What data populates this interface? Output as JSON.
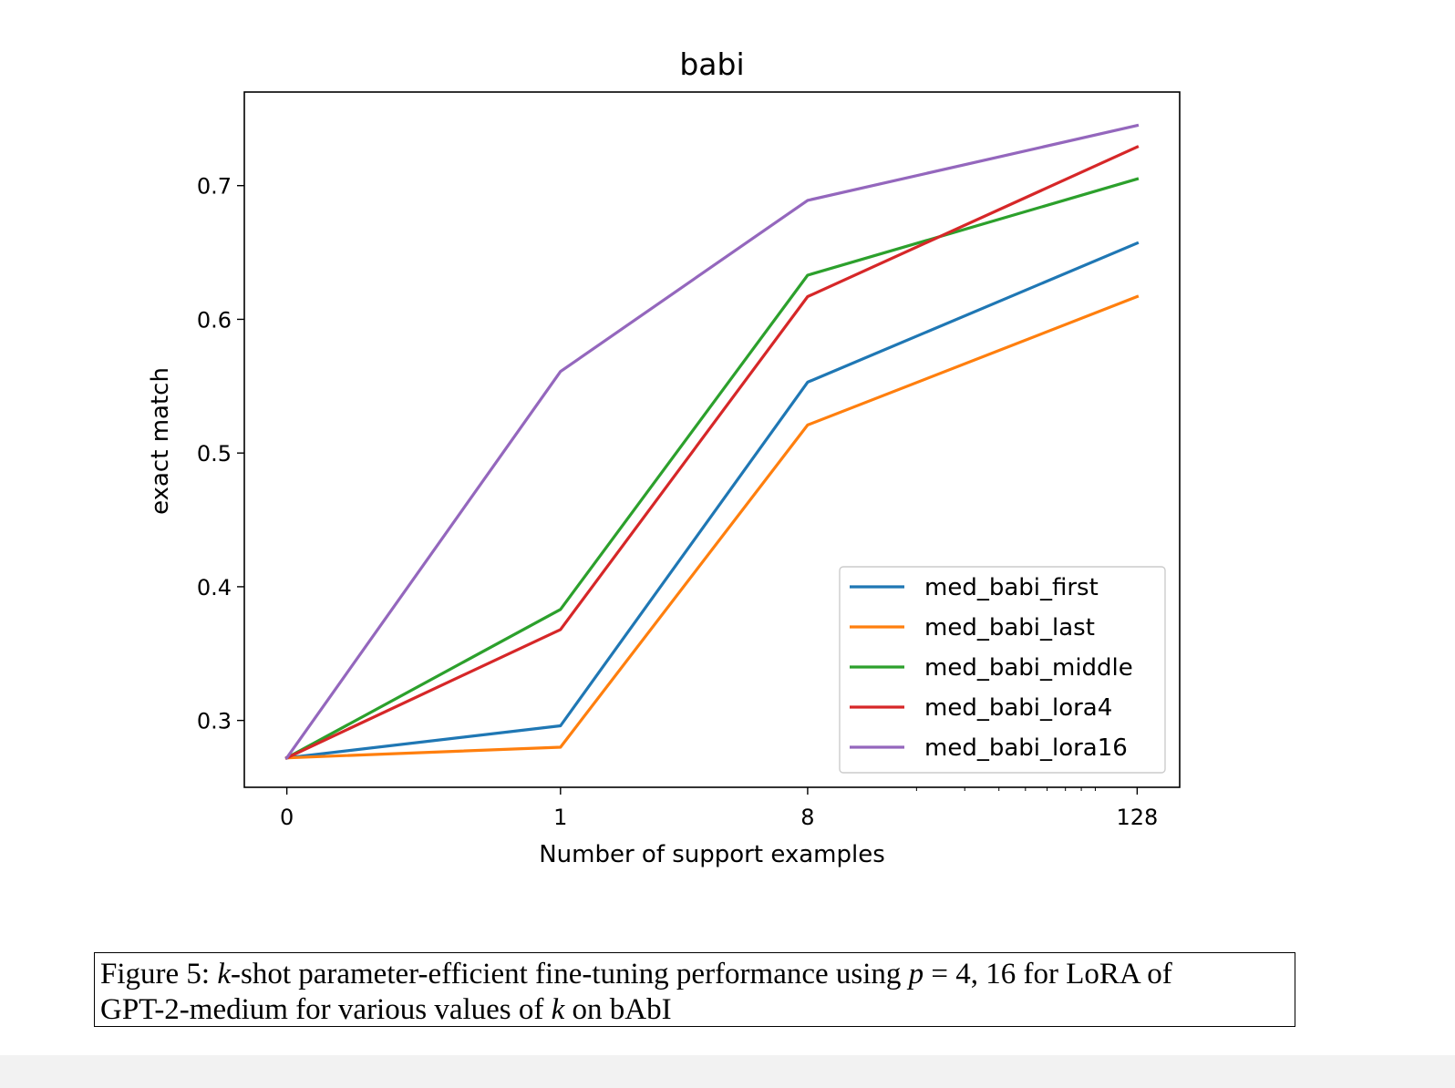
{
  "chart_data": {
    "type": "line",
    "title": "babi",
    "xlabel": "Number of support examples",
    "ylabel": "exact match",
    "x_categories": [
      "0",
      "1",
      "8",
      "128"
    ],
    "x_scale": "symlog",
    "ylim": [
      0.25,
      0.77
    ],
    "yticks": [
      "0.3",
      "0.4",
      "0.5",
      "0.6",
      "0.7"
    ],
    "grid": false,
    "legend_position": "lower right",
    "series": [
      {
        "name": "med_babi_first",
        "color": "#1f77b4",
        "values": [
          0.272,
          0.296,
          0.553,
          0.657
        ]
      },
      {
        "name": "med_babi_last",
        "color": "#ff7f0e",
        "values": [
          0.272,
          0.28,
          0.521,
          0.617
        ]
      },
      {
        "name": "med_babi_middle",
        "color": "#2ca02c",
        "values": [
          0.272,
          0.383,
          0.633,
          0.705
        ]
      },
      {
        "name": "med_babi_lora4",
        "color": "#d62728",
        "values": [
          0.272,
          0.368,
          0.617,
          0.729
        ]
      },
      {
        "name": "med_babi_lora16",
        "color": "#9467bd",
        "values": [
          0.272,
          0.561,
          0.689,
          0.745
        ]
      }
    ]
  },
  "caption": {
    "prefix": "Figure 5: ",
    "k1": "k",
    "part1": "-shot parameter-efficient fine-tuning performance using ",
    "p": "p",
    "part2": " = 4, 16 for LoRA of",
    "line2": "GPT-2-medium for various values of ",
    "k2": "k",
    "suffix": " on bAbI"
  }
}
